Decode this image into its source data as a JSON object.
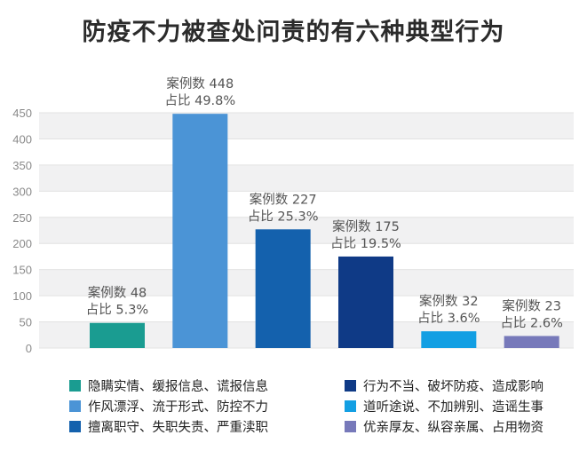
{
  "chart_data": {
    "type": "bar",
    "title": "防疫不力被查处问责的有六种典型行为",
    "ylim": [
      0,
      450
    ],
    "yticks": [
      0,
      50,
      100,
      150,
      200,
      250,
      300,
      350,
      400,
      450
    ],
    "grid": true,
    "categories": [
      "隐瞒实情、缓报信息、谎报信息",
      "作风漂浮、流于形式、防控不力",
      "擅离职守、失职失责、严重渎职",
      "行为不当、破坏防疫、造成影响",
      "道听途说、不加辨别、造谣生事",
      "优亲厚友、纵容亲属、占用物资"
    ],
    "values": [
      48,
      448,
      227,
      175,
      32,
      23
    ],
    "value_labels": [
      "案例数 48",
      "案例数 448",
      "案例数 227",
      "案例数 175",
      "案例数 32",
      "案例数 23"
    ],
    "share_labels": [
      "占比 5.3%",
      "占比 49.8%",
      "占比 25.3%",
      "占比 19.5%",
      "占比 3.6%",
      "占比 2.6%"
    ],
    "colors": [
      "#1a9c91",
      "#4b94d6",
      "#1461ad",
      "#0f3a86",
      "#139fe3",
      "#7779ba"
    ],
    "legend_position": "bottom"
  },
  "legend": [
    {
      "label": "隐瞒实情、缓报信息、谎报信息",
      "color": "#1a9c91"
    },
    {
      "label": "行为不当、破坏防疫、造成影响",
      "color": "#0f3a86"
    },
    {
      "label": "作风漂浮、流于形式、防控不力",
      "color": "#4b94d6"
    },
    {
      "label": "道听途说、不加辨别、造谣生事",
      "color": "#139fe3"
    },
    {
      "label": "擅离职守、失职失责、严重渎职",
      "color": "#1461ad"
    },
    {
      "label": "优亲厚友、纵容亲属、占用物资",
      "color": "#7779ba"
    }
  ]
}
